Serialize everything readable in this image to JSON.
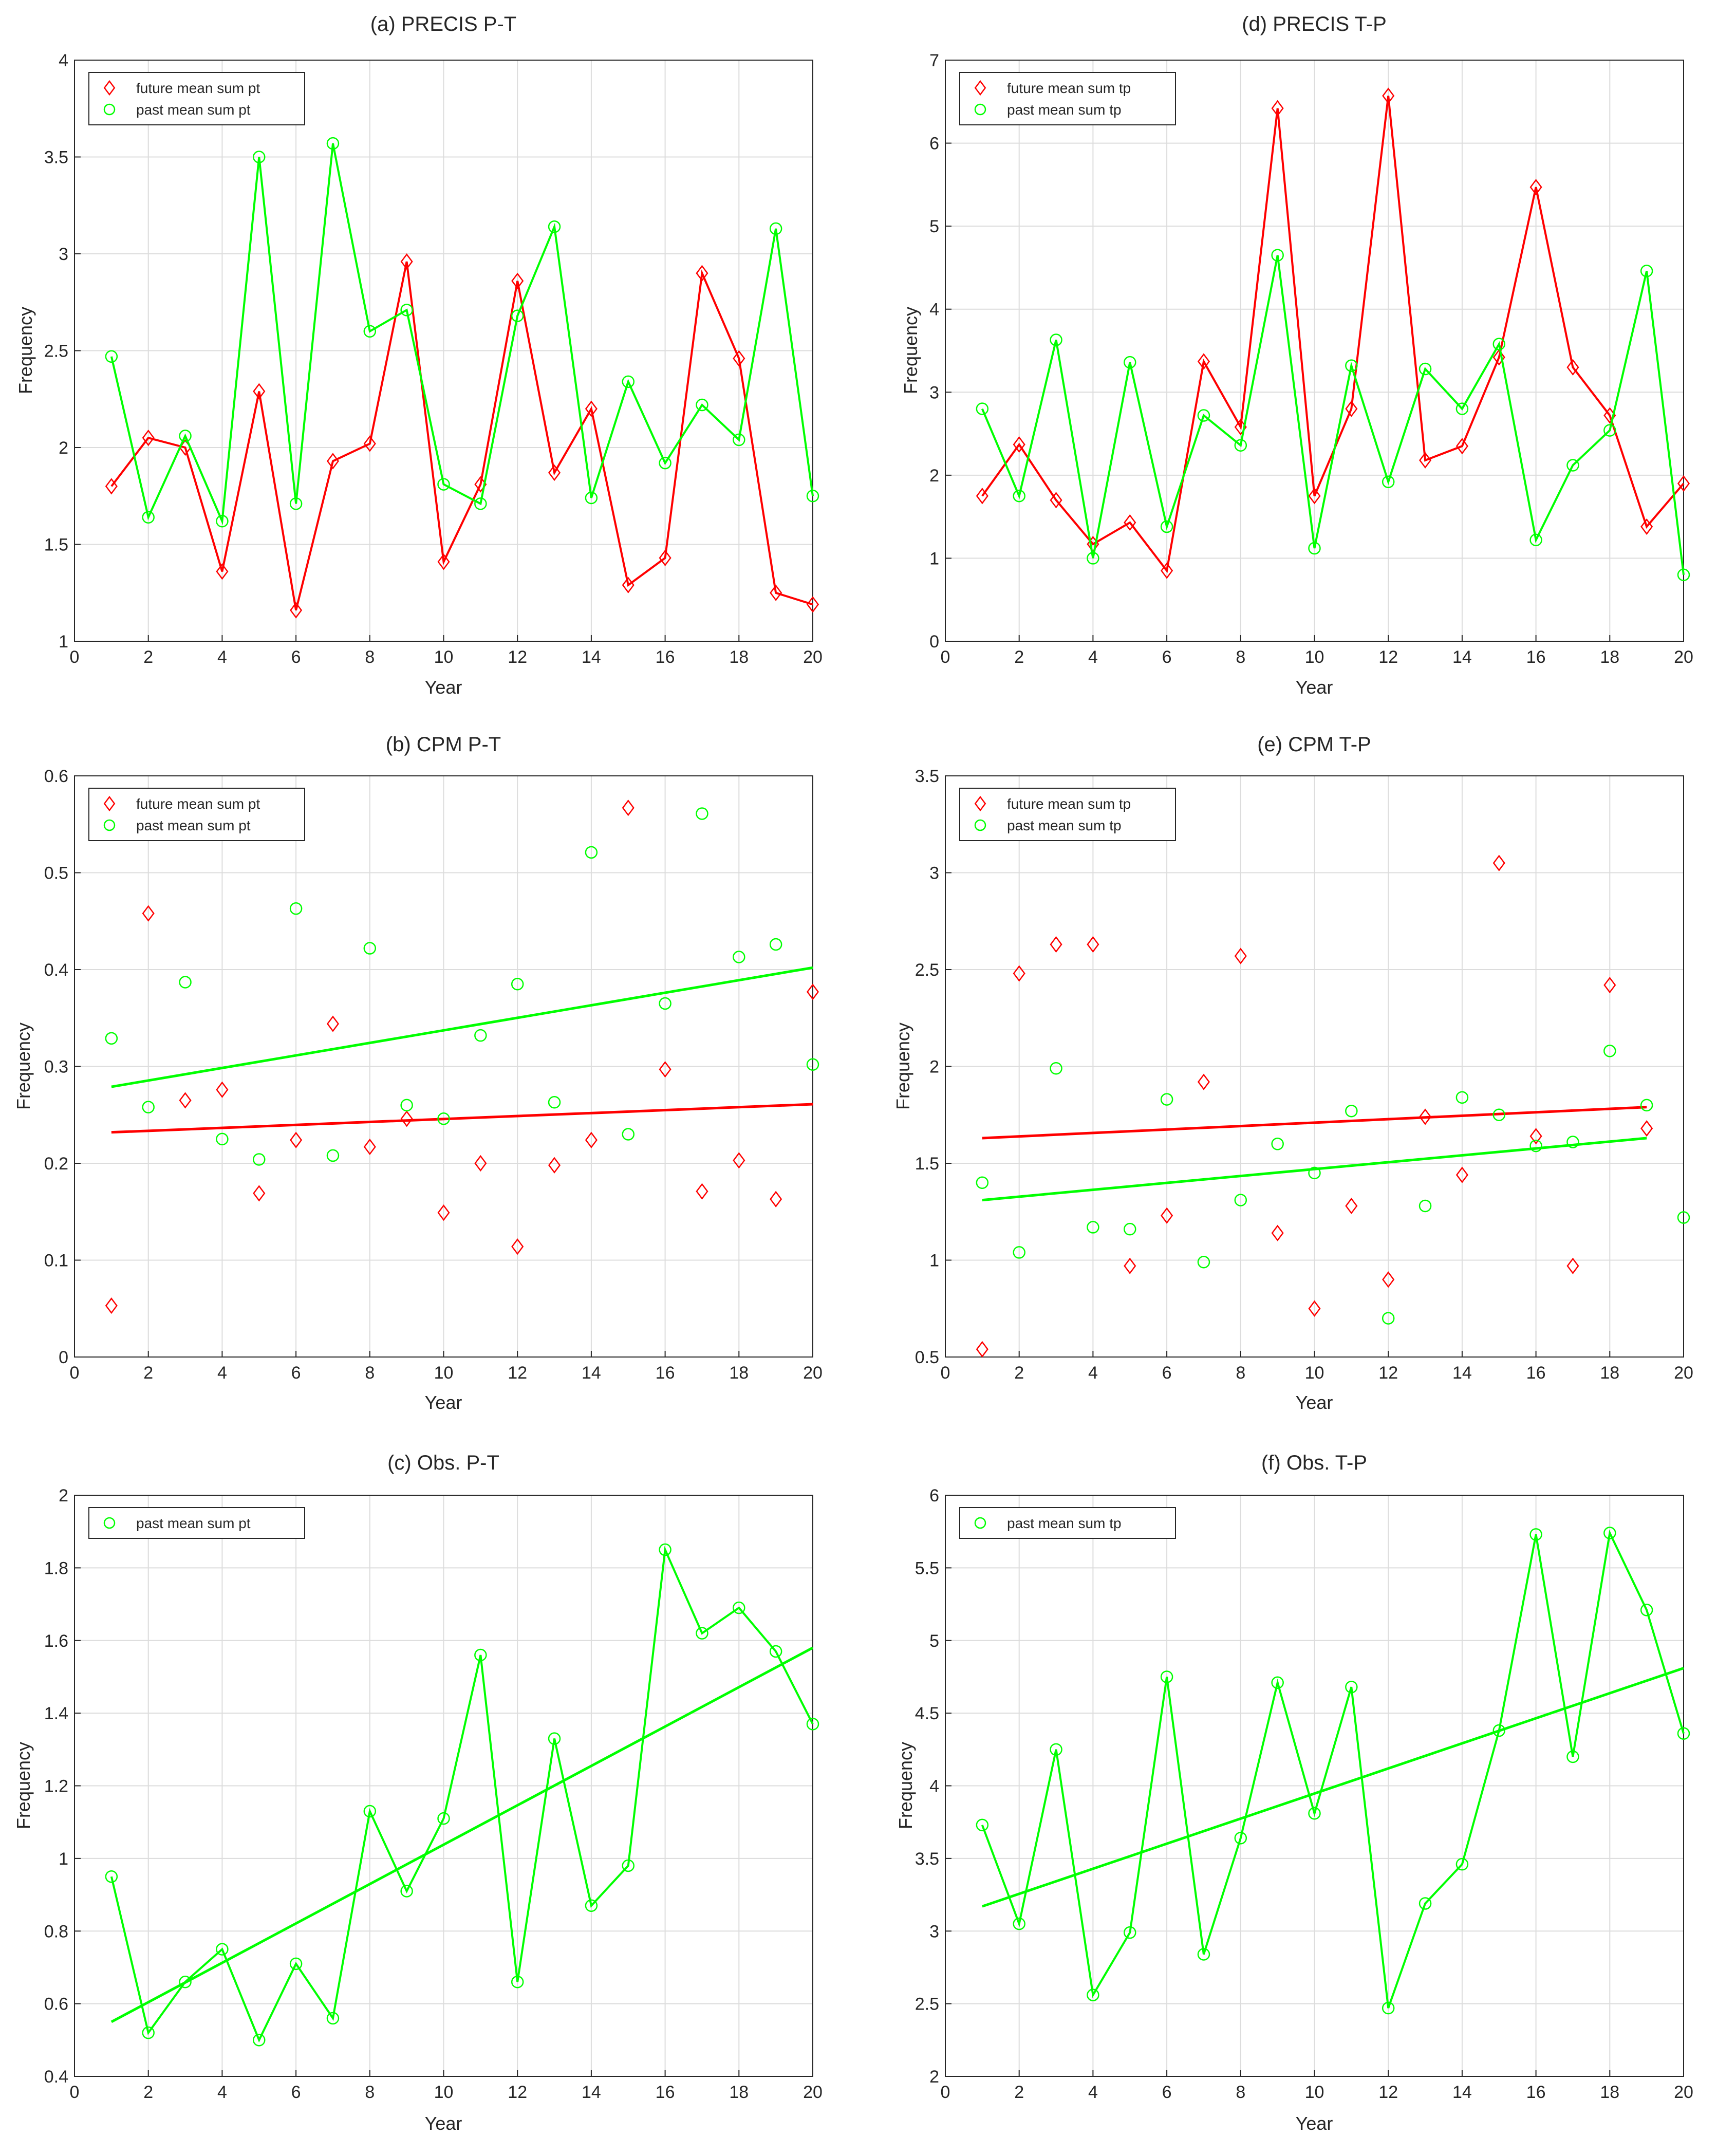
{
  "chart_data": [
    {
      "id": "a",
      "type": "line",
      "title": "(a) PRECIS P-T",
      "xlabel": "Year",
      "ylabel": "Frequency",
      "xlim": [
        0,
        20
      ],
      "ylim": [
        1,
        4
      ],
      "xticks": [
        "0",
        "2",
        "4",
        "6",
        "8",
        "10",
        "12",
        "14",
        "16",
        "18",
        "20"
      ],
      "yticks": [
        "1",
        "1.5",
        "2",
        "2.5",
        "3",
        "3.5",
        "4"
      ],
      "legend": {
        "position": "top-left"
      },
      "series": [
        {
          "name": "future mean sum pt",
          "color": "#ff0000",
          "marker": "diamond",
          "connect": true,
          "x": [
            1,
            2,
            3,
            4,
            5,
            6,
            7,
            8,
            9,
            10,
            11,
            12,
            13,
            14,
            15,
            16,
            17,
            18,
            19,
            20
          ],
          "values": [
            1.8,
            2.05,
            2.0,
            1.36,
            2.29,
            1.16,
            1.93,
            2.02,
            2.96,
            1.41,
            1.81,
            2.86,
            1.87,
            2.2,
            1.29,
            1.43,
            2.9,
            2.46,
            1.25,
            1.19
          ]
        },
        {
          "name": "past mean sum pt",
          "color": "#00ff00",
          "marker": "circle",
          "connect": true,
          "x": [
            1,
            2,
            3,
            4,
            5,
            6,
            7,
            8,
            9,
            10,
            11,
            12,
            13,
            14,
            15,
            16,
            17,
            18,
            19,
            20
          ],
          "values": [
            2.47,
            1.64,
            2.06,
            1.62,
            3.5,
            1.71,
            3.57,
            2.6,
            2.71,
            1.81,
            1.71,
            2.68,
            3.14,
            1.74,
            2.34,
            1.92,
            2.22,
            2.04,
            3.13,
            1.75
          ]
        }
      ]
    },
    {
      "id": "d",
      "type": "line",
      "title": "(d) PRECIS T-P",
      "xlabel": "Year",
      "ylabel": "Frequency",
      "xlim": [
        0,
        20
      ],
      "ylim": [
        0,
        7
      ],
      "xticks": [
        "0",
        "2",
        "4",
        "6",
        "8",
        "10",
        "12",
        "14",
        "16",
        "18",
        "20"
      ],
      "yticks": [
        "0",
        "1",
        "2",
        "3",
        "4",
        "5",
        "6",
        "7"
      ],
      "legend": {
        "position": "top-left"
      },
      "series": [
        {
          "name": "future mean sum tp",
          "color": "#ff0000",
          "marker": "diamond",
          "connect": true,
          "x": [
            1,
            2,
            3,
            4,
            5,
            6,
            7,
            8,
            9,
            10,
            11,
            12,
            13,
            14,
            15,
            16,
            17,
            18,
            19,
            20
          ],
          "values": [
            1.75,
            2.37,
            1.7,
            1.17,
            1.43,
            0.85,
            3.37,
            2.58,
            6.42,
            1.75,
            2.8,
            6.57,
            2.18,
            2.35,
            3.42,
            5.47,
            3.3,
            2.72,
            1.38,
            1.9
          ]
        },
        {
          "name": "past mean sum tp",
          "color": "#00ff00",
          "marker": "circle",
          "connect": true,
          "x": [
            1,
            2,
            3,
            4,
            5,
            6,
            7,
            8,
            9,
            10,
            11,
            12,
            13,
            14,
            15,
            16,
            17,
            18,
            19,
            20
          ],
          "values": [
            2.8,
            1.75,
            3.63,
            1.0,
            3.36,
            1.38,
            2.72,
            2.36,
            4.65,
            1.12,
            3.32,
            1.92,
            3.28,
            2.8,
            3.58,
            1.22,
            2.12,
            2.54,
            4.46,
            0.8
          ]
        }
      ]
    },
    {
      "id": "b",
      "type": "scatter",
      "title": "(b) CPM P-T",
      "xlabel": "Year",
      "ylabel": "Frequency",
      "xlim": [
        0,
        20
      ],
      "ylim": [
        0,
        0.6
      ],
      "xticks": [
        "0",
        "2",
        "4",
        "6",
        "8",
        "10",
        "12",
        "14",
        "16",
        "18",
        "20"
      ],
      "yticks": [
        "0",
        "0.1",
        "0.2",
        "0.3",
        "0.4",
        "0.5",
        "0.6"
      ],
      "legend": {
        "position": "top-left"
      },
      "series": [
        {
          "name": "future mean sum pt",
          "color": "#ff0000",
          "marker": "diamond",
          "connect": false,
          "x": [
            1,
            2,
            3,
            4,
            5,
            6,
            7,
            8,
            9,
            10,
            11,
            12,
            13,
            14,
            15,
            16,
            17,
            18,
            19,
            20
          ],
          "values": [
            0.053,
            0.458,
            0.265,
            0.276,
            0.169,
            0.224,
            0.344,
            0.217,
            0.246,
            0.149,
            0.2,
            0.114,
            0.198,
            0.224,
            0.567,
            0.297,
            0.171,
            0.203,
            0.163,
            0.377
          ],
          "trend": {
            "x": [
              1,
              20
            ],
            "y": [
              0.232,
              0.261
            ]
          }
        },
        {
          "name": "past mean sum pt",
          "color": "#00ff00",
          "marker": "circle",
          "connect": false,
          "x": [
            1,
            2,
            3,
            4,
            5,
            6,
            7,
            8,
            9,
            10,
            11,
            12,
            13,
            14,
            15,
            16,
            17,
            18,
            19,
            20
          ],
          "values": [
            0.329,
            0.258,
            0.387,
            0.225,
            0.204,
            0.463,
            0.208,
            0.422,
            0.26,
            0.246,
            0.332,
            0.385,
            0.263,
            0.521,
            0.23,
            0.365,
            0.561,
            0.413,
            0.426,
            0.302
          ],
          "trend": {
            "x": [
              1,
              20
            ],
            "y": [
              0.279,
              0.402
            ]
          }
        }
      ]
    },
    {
      "id": "e",
      "type": "scatter",
      "title": "(e) CPM T-P",
      "xlabel": "Year",
      "ylabel": "Frequency",
      "xlim": [
        0,
        20
      ],
      "ylim": [
        0.5,
        3.5
      ],
      "xticks": [
        "0",
        "2",
        "4",
        "6",
        "8",
        "10",
        "12",
        "14",
        "16",
        "18",
        "20"
      ],
      "yticks": [
        "0.5",
        "1",
        "1.5",
        "2",
        "2.5",
        "3",
        "3.5"
      ],
      "legend": {
        "position": "top-left"
      },
      "series": [
        {
          "name": "future mean sum tp",
          "color": "#ff0000",
          "marker": "diamond",
          "connect": false,
          "x": [
            1,
            2,
            3,
            4,
            5,
            6,
            7,
            8,
            9,
            10,
            11,
            12,
            13,
            14,
            15,
            16,
            17,
            18,
            19
          ],
          "values": [
            0.54,
            2.48,
            2.63,
            2.63,
            0.97,
            1.23,
            1.92,
            2.57,
            1.14,
            0.75,
            1.28,
            0.9,
            1.74,
            1.44,
            3.05,
            1.64,
            0.97,
            2.42,
            1.68
          ],
          "trend": {
            "x": [
              1,
              19
            ],
            "y": [
              1.63,
              1.79
            ]
          }
        },
        {
          "name": "past mean sum tp",
          "color": "#00ff00",
          "marker": "circle",
          "connect": false,
          "x": [
            1,
            2,
            3,
            4,
            5,
            6,
            7,
            8,
            9,
            10,
            11,
            12,
            13,
            14,
            15,
            16,
            17,
            18,
            19,
            20
          ],
          "values": [
            1.4,
            1.04,
            1.99,
            1.17,
            1.16,
            1.83,
            0.99,
            1.31,
            1.6,
            1.45,
            1.77,
            0.7,
            1.28,
            1.84,
            1.75,
            1.59,
            1.61,
            2.08,
            1.8,
            1.22
          ],
          "trend": {
            "x": [
              1,
              19
            ],
            "y": [
              1.31,
              1.63
            ]
          }
        }
      ]
    },
    {
      "id": "c",
      "type": "line",
      "title": "(c) Obs. P-T",
      "xlabel": "Year",
      "ylabel": "Frequency",
      "xlim": [
        0,
        20
      ],
      "ylim": [
        0.4,
        2
      ],
      "xticks": [
        "0",
        "2",
        "4",
        "6",
        "8",
        "10",
        "12",
        "14",
        "16",
        "18",
        "20"
      ],
      "yticks": [
        "0.4",
        "0.6",
        "0.8",
        "1",
        "1.2",
        "1.4",
        "1.6",
        "1.8",
        "2"
      ],
      "legend": {
        "position": "top-left"
      },
      "series": [
        {
          "name": "past mean sum pt",
          "color": "#00ff00",
          "marker": "circle",
          "connect": true,
          "x": [
            1,
            2,
            3,
            4,
            5,
            6,
            7,
            8,
            9,
            10,
            11,
            12,
            13,
            14,
            15,
            16,
            17,
            18,
            19,
            20
          ],
          "values": [
            0.95,
            0.52,
            0.66,
            0.75,
            0.5,
            0.71,
            0.56,
            1.13,
            0.91,
            1.11,
            1.56,
            0.66,
            1.33,
            0.87,
            0.98,
            1.85,
            1.62,
            1.69,
            1.57,
            1.37
          ],
          "trend": {
            "x": [
              1,
              20
            ],
            "y": [
              0.55,
              1.58
            ]
          }
        }
      ]
    },
    {
      "id": "f",
      "type": "line",
      "title": "(f) Obs. T-P",
      "xlabel": "Year",
      "ylabel": "Frequency",
      "xlim": [
        0,
        20
      ],
      "ylim": [
        2,
        6
      ],
      "xticks": [
        "0",
        "2",
        "4",
        "6",
        "8",
        "10",
        "12",
        "14",
        "16",
        "18",
        "20"
      ],
      "yticks": [
        "2",
        "2.5",
        "3",
        "3.5",
        "4",
        "4.5",
        "5",
        "5.5",
        "6"
      ],
      "legend": {
        "position": "top-left"
      },
      "series": [
        {
          "name": "past mean sum tp",
          "color": "#00ff00",
          "marker": "circle",
          "connect": true,
          "x": [
            1,
            2,
            3,
            4,
            5,
            6,
            7,
            8,
            9,
            10,
            11,
            12,
            13,
            14,
            15,
            16,
            17,
            18,
            19,
            20
          ],
          "values": [
            3.73,
            3.05,
            4.25,
            2.56,
            2.99,
            4.75,
            2.84,
            3.64,
            4.71,
            3.81,
            4.68,
            2.47,
            3.19,
            3.46,
            4.38,
            5.73,
            4.2,
            5.74,
            5.21,
            4.36
          ],
          "trend": {
            "x": [
              1,
              20
            ],
            "y": [
              3.17,
              4.81
            ]
          }
        }
      ]
    }
  ]
}
